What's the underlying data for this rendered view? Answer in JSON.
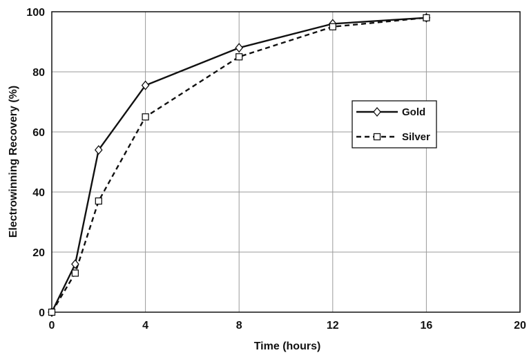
{
  "chart_data": {
    "type": "line",
    "xlabel": "Time (hours)",
    "ylabel": "Electrowinning Recovery (%)",
    "xlim": [
      0,
      20
    ],
    "ylim": [
      0,
      100
    ],
    "x_ticks": [
      "0",
      "4",
      "8",
      "12",
      "16",
      "20"
    ],
    "y_ticks": [
      "0",
      "20",
      "40",
      "60",
      "80",
      "100"
    ],
    "grid": true,
    "legend_position": "right",
    "series": [
      {
        "name": "Gold",
        "marker": "diamond",
        "line_style": "solid",
        "color": "#111111",
        "x": [
          0,
          1,
          2,
          4,
          8,
          12,
          16
        ],
        "y": [
          0,
          16,
          54,
          75.5,
          88,
          96,
          98
        ]
      },
      {
        "name": "Silver",
        "marker": "square",
        "line_style": "dashed",
        "color": "#111111",
        "x": [
          0,
          1,
          2,
          4,
          8,
          12,
          16
        ],
        "y": [
          0,
          13,
          37,
          65,
          85,
          95,
          98
        ]
      }
    ]
  }
}
